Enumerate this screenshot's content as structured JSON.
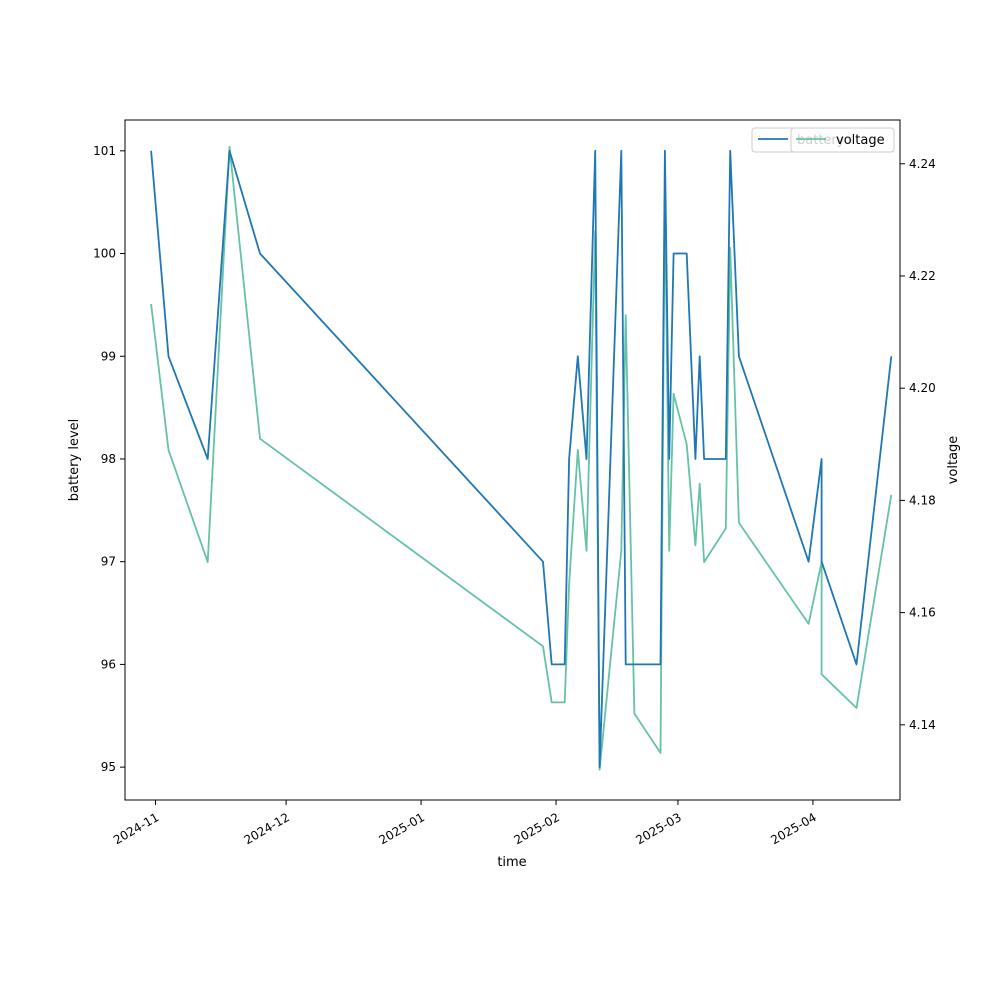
{
  "chart_data": {
    "type": "line",
    "title": "",
    "xlabel": "time",
    "ylabel": "battery level",
    "y2label": "voltage",
    "xlim": [
      "2024-10-25",
      "2025-04-21"
    ],
    "ylim": [
      94.68,
      101.3
    ],
    "y2lim": [
      4.1266,
      4.2478
    ],
    "x_ticks": [
      {
        "date": "2024-11-01",
        "label": "2024-11"
      },
      {
        "date": "2024-12-01",
        "label": "2024-12"
      },
      {
        "date": "2025-01-01",
        "label": "2025-01"
      },
      {
        "date": "2025-02-01",
        "label": "2025-02"
      },
      {
        "date": "2025-03-01",
        "label": "2025-03"
      },
      {
        "date": "2025-04-01",
        "label": "2025-04"
      }
    ],
    "y_ticks": [
      "95",
      "96",
      "97",
      "98",
      "99",
      "100",
      "101"
    ],
    "y2_ticks": [
      "4.14",
      "4.16",
      "4.18",
      "4.20",
      "4.22",
      "4.24"
    ],
    "grid": false,
    "legend_placement": "top-right",
    "x": [
      "2024-10-31",
      "2024-11-04",
      "2024-11-13",
      "2024-11-18",
      "2024-11-25",
      "2025-01-29",
      "2025-01-31",
      "2025-02-03",
      "2025-02-04",
      "2025-02-06",
      "2025-02-08",
      "2025-02-10",
      "2025-02-11",
      "2025-02-16",
      "2025-02-17",
      "2025-02-19",
      "2025-02-25",
      "2025-02-26",
      "2025-02-27",
      "2025-02-28",
      "2025-03-03",
      "2025-03-05",
      "2025-03-06",
      "2025-03-07",
      "2025-03-12",
      "2025-03-13",
      "2025-03-15",
      "2025-03-31",
      "2025-04-03",
      "2025-04-03",
      "2025-04-11",
      "2025-04-19"
    ],
    "series": [
      {
        "name": "battery",
        "axis": "left",
        "color": "#1f77b4",
        "values": [
          101,
          99,
          98,
          101,
          100,
          97,
          96,
          96,
          98,
          99,
          98,
          101,
          95,
          101,
          96,
          96,
          96,
          101,
          98,
          100,
          100,
          98,
          99,
          98,
          98,
          101,
          99,
          97,
          98,
          97,
          96,
          99
        ]
      },
      {
        "name": "voltage",
        "axis": "right",
        "color": "#66c2a5",
        "values": [
          4.215,
          4.189,
          4.169,
          4.243,
          4.191,
          4.154,
          4.144,
          4.144,
          4.165,
          4.189,
          4.171,
          4.228,
          4.132,
          4.171,
          4.213,
          4.142,
          4.135,
          4.236,
          4.171,
          4.199,
          4.19,
          4.172,
          4.183,
          4.169,
          4.175,
          4.225,
          4.176,
          4.158,
          4.169,
          4.149,
          4.143,
          4.181
        ]
      }
    ]
  }
}
